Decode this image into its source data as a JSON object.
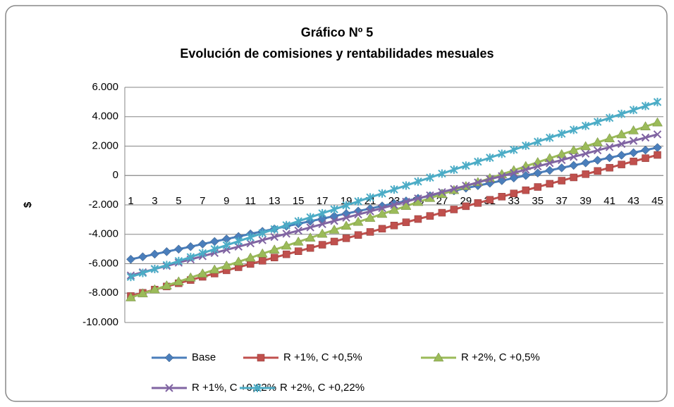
{
  "chart_data": {
    "type": "line",
    "title": "Gráfico Nº 5",
    "subtitle": "Evolución de comisiones y rentabilidades mesuales",
    "y_label": "$",
    "categories": [
      1,
      null,
      3,
      null,
      5,
      null,
      7,
      null,
      9,
      null,
      11,
      null,
      13,
      null,
      15,
      null,
      17,
      null,
      19,
      null,
      21,
      null,
      23,
      null,
      25,
      null,
      27,
      null,
      29,
      null,
      31,
      null,
      33,
      null,
      35,
      null,
      37,
      null,
      39,
      null,
      41,
      null,
      43,
      null,
      45
    ],
    "ylim": [
      -10000,
      6000
    ],
    "yticks": [
      {
        "value": -10000,
        "label": "-10.000"
      },
      {
        "value": -8000,
        "label": "-8.000"
      },
      {
        "value": -6000,
        "label": "-6.000"
      },
      {
        "value": -4000,
        "label": "-4.000"
      },
      {
        "value": -2000,
        "label": "-2.000"
      },
      0,
      {
        "value": 2000,
        "label": "2.000"
      },
      {
        "value": 4000,
        "label": "4.000"
      },
      {
        "value": 6000,
        "label": "6.000"
      }
    ],
    "grid": true,
    "legend": "bottom",
    "series": [
      {
        "name": "Base",
        "color": "#4a7ebb",
        "marker": "diamond",
        "values": [
          -5700,
          -5530,
          -5350,
          -5180,
          -5010,
          -4840,
          -4660,
          -4490,
          -4320,
          -4150,
          -3970,
          -3800,
          -3630,
          -3450,
          -3280,
          -3110,
          -2940,
          -2760,
          -2590,
          -2420,
          -2250,
          -2070,
          -1900,
          -1730,
          -1550,
          -1380,
          -1210,
          -1040,
          -860,
          -690,
          -520,
          -350,
          -170,
          0,
          170,
          350,
          520,
          690,
          860,
          1040,
          1210,
          1380,
          1550,
          1730,
          1900
        ]
      },
      {
        "name": "R +1%, C +0,5%",
        "color": "#c0504d",
        "marker": "square",
        "values": [
          -8200,
          -7980,
          -7760,
          -7550,
          -7330,
          -7110,
          -6890,
          -6670,
          -6450,
          -6240,
          -6020,
          -5800,
          -5580,
          -5360,
          -5150,
          -4930,
          -4710,
          -4490,
          -4270,
          -4050,
          -3840,
          -3620,
          -3400,
          -3180,
          -2960,
          -2750,
          -2530,
          -2310,
          -2090,
          -1870,
          -1650,
          -1440,
          -1220,
          -1000,
          -780,
          -560,
          -350,
          -130,
          90,
          310,
          530,
          750,
          960,
          1180,
          1400
        ]
      },
      {
        "name": "R +2%, C +0,5%",
        "color": "#9bbb59",
        "marker": "triangle",
        "values": [
          -8300,
          -8030,
          -7760,
          -7490,
          -7220,
          -6950,
          -6680,
          -6410,
          -6140,
          -5870,
          -5600,
          -5320,
          -5050,
          -4780,
          -4510,
          -4240,
          -3970,
          -3700,
          -3430,
          -3160,
          -2890,
          -2620,
          -2350,
          -2080,
          -1810,
          -1540,
          -1270,
          -1000,
          -730,
          -460,
          -190,
          80,
          350,
          630,
          900,
          1170,
          1440,
          1710,
          1980,
          2250,
          2520,
          2790,
          3060,
          3330,
          3600
        ]
      },
      {
        "name": "R +1%, C +0,22%",
        "color": "#8064a2",
        "marker": "x",
        "values": [
          -6800,
          -6580,
          -6360,
          -6150,
          -5930,
          -5710,
          -5490,
          -5270,
          -5050,
          -4840,
          -4620,
          -4400,
          -4180,
          -3960,
          -3750,
          -3530,
          -3310,
          -3090,
          -2870,
          -2650,
          -2440,
          -2220,
          -2000,
          -1780,
          -1560,
          -1350,
          -1130,
          -910,
          -690,
          -470,
          -250,
          -40,
          180,
          400,
          620,
          840,
          1050,
          1270,
          1490,
          1710,
          1930,
          2150,
          2360,
          2580,
          2800
        ]
      },
      {
        "name": "R +2%, C +0,22%",
        "color": "#4bacc6",
        "marker": "star",
        "values": [
          -6900,
          -6630,
          -6360,
          -6090,
          -5820,
          -5550,
          -5280,
          -5010,
          -4740,
          -4470,
          -4200,
          -3920,
          -3650,
          -3380,
          -3110,
          -2840,
          -2570,
          -2300,
          -2030,
          -1760,
          -1490,
          -1220,
          -950,
          -680,
          -410,
          -140,
          130,
          400,
          670,
          940,
          1210,
          1480,
          1750,
          2030,
          2300,
          2570,
          2840,
          3110,
          3380,
          3650,
          3920,
          4190,
          4460,
          4730,
          5000
        ]
      }
    ]
  }
}
